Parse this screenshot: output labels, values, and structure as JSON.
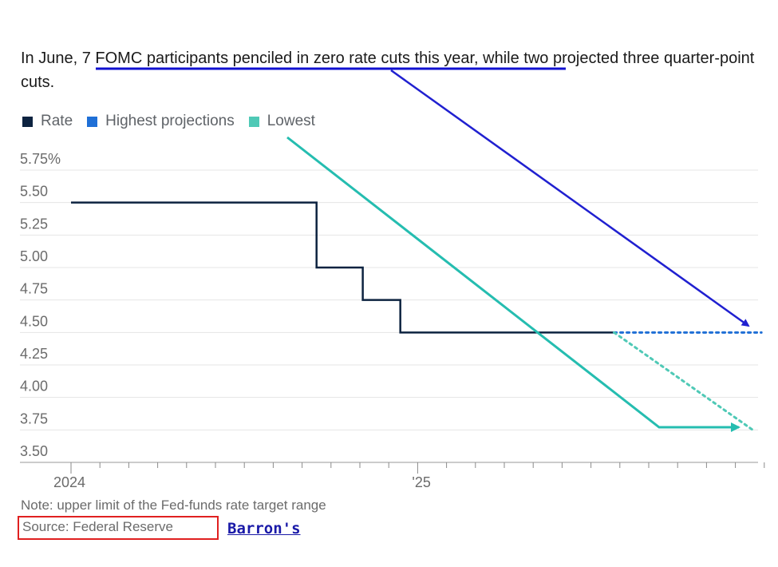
{
  "headline": {
    "before": "In June, ",
    "highlight": "7 FOMC participants penciled in zero rate cuts this year",
    "after": ", while two projected three quarter-point cuts."
  },
  "chart_data": {
    "type": "line",
    "legend": [
      {
        "label": "Rate",
        "color": "#0d2340"
      },
      {
        "label": "Highest projections",
        "color": "#1f6fd6"
      },
      {
        "label": "Lowest",
        "color": "#4fc9b6"
      }
    ],
    "y_ticks": [
      "5.75%",
      "5.50",
      "5.25",
      "5.00",
      "4.75",
      "4.50",
      "4.25",
      "4.00",
      "3.75",
      "3.50"
    ],
    "y_values": [
      5.75,
      5.5,
      5.25,
      5.0,
      4.75,
      4.5,
      4.25,
      4.0,
      3.75,
      3.5
    ],
    "ylim": [
      3.5,
      5.75
    ],
    "x_labels": [
      {
        "label": "2024",
        "month": 0
      },
      {
        "label": "'25",
        "month": 12
      }
    ],
    "xlim_months": [
      0,
      24
    ],
    "grid": true,
    "series": [
      {
        "name": "Rate",
        "step": true,
        "points": [
          [
            0,
            5.5
          ],
          [
            8.5,
            5.5
          ],
          [
            8.5,
            5.0
          ],
          [
            10.1,
            5.0
          ],
          [
            10.1,
            4.75
          ],
          [
            11.4,
            4.75
          ],
          [
            11.4,
            4.5
          ],
          [
            18.8,
            4.5
          ]
        ]
      },
      {
        "name": "Highest projections",
        "dotted": true,
        "points": [
          [
            18.8,
            4.5
          ],
          [
            23.9,
            4.5
          ]
        ]
      },
      {
        "name": "Lowest",
        "dotted": true,
        "points": [
          [
            18.8,
            4.5
          ],
          [
            23.6,
            3.75
          ]
        ]
      }
    ]
  },
  "annotations": {
    "underline_color": "#1010d0",
    "blue_arrow_color": "#2020d0",
    "teal_arrow_color": "#25bdb0"
  },
  "footer": {
    "note": "Note: upper limit of the Fed-funds rate target range",
    "source": "Source: Federal Reserve",
    "brand": "Barron's"
  }
}
